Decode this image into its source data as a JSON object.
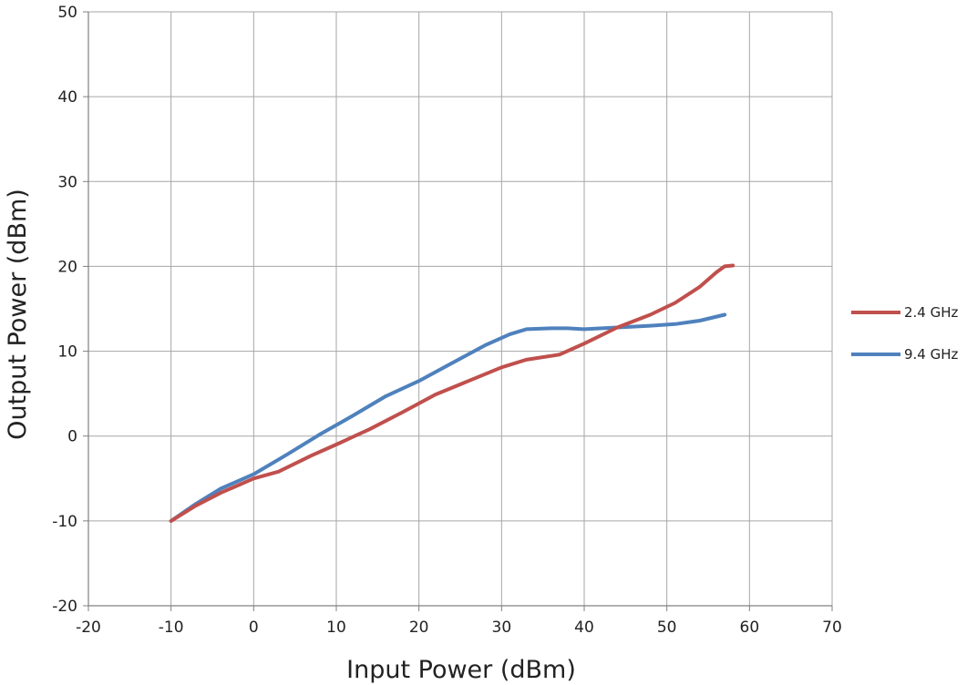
{
  "chart_data": {
    "type": "line",
    "title": "",
    "xlabel": "Input Power (dBm)",
    "ylabel": "Output Power (dBm)",
    "xlim": [
      -20,
      70
    ],
    "ylim": [
      -20,
      50
    ],
    "xticks": [
      -20,
      -10,
      0,
      10,
      20,
      30,
      40,
      50,
      60,
      70
    ],
    "yticks": [
      -20,
      -10,
      0,
      10,
      20,
      30,
      40,
      50
    ],
    "xtick_labels": [
      "-20",
      "-10",
      "0",
      "10",
      "20",
      "30",
      "40",
      "50",
      "60",
      "70"
    ],
    "ytick_labels": [
      "-20",
      "-10",
      "0",
      "10",
      "20",
      "30",
      "40",
      "50"
    ],
    "grid": true,
    "legend_position": "right",
    "series": [
      {
        "name": "2.4 GHz",
        "color": "#c0504d",
        "x": [
          -10,
          -7,
          -4,
          0,
          3,
          7,
          10,
          14,
          18,
          22,
          26,
          30,
          33,
          37,
          40,
          44,
          48,
          51,
          54,
          56,
          57,
          58
        ],
        "y": [
          -10,
          -8.2,
          -6.7,
          -5,
          -4.2,
          -2.3,
          -1.0,
          0.8,
          2.8,
          4.9,
          6.5,
          8.1,
          9.0,
          9.6,
          10.9,
          12.8,
          14.3,
          15.7,
          17.6,
          19.3,
          20.0,
          20.1
        ]
      },
      {
        "name": "9.4 GHz",
        "color": "#4f81bd",
        "x": [
          -10,
          -7,
          -4,
          0,
          4,
          8,
          12,
          16,
          20,
          24,
          28,
          31,
          33,
          36,
          38,
          40,
          44,
          48,
          51,
          54,
          57
        ],
        "y": [
          -10,
          -8.0,
          -6.2,
          -4.5,
          -2.2,
          0.2,
          2.4,
          4.7,
          6.5,
          8.6,
          10.7,
          12.0,
          12.6,
          12.7,
          12.7,
          12.6,
          12.8,
          13.0,
          13.2,
          13.6,
          14.3
        ]
      }
    ]
  }
}
